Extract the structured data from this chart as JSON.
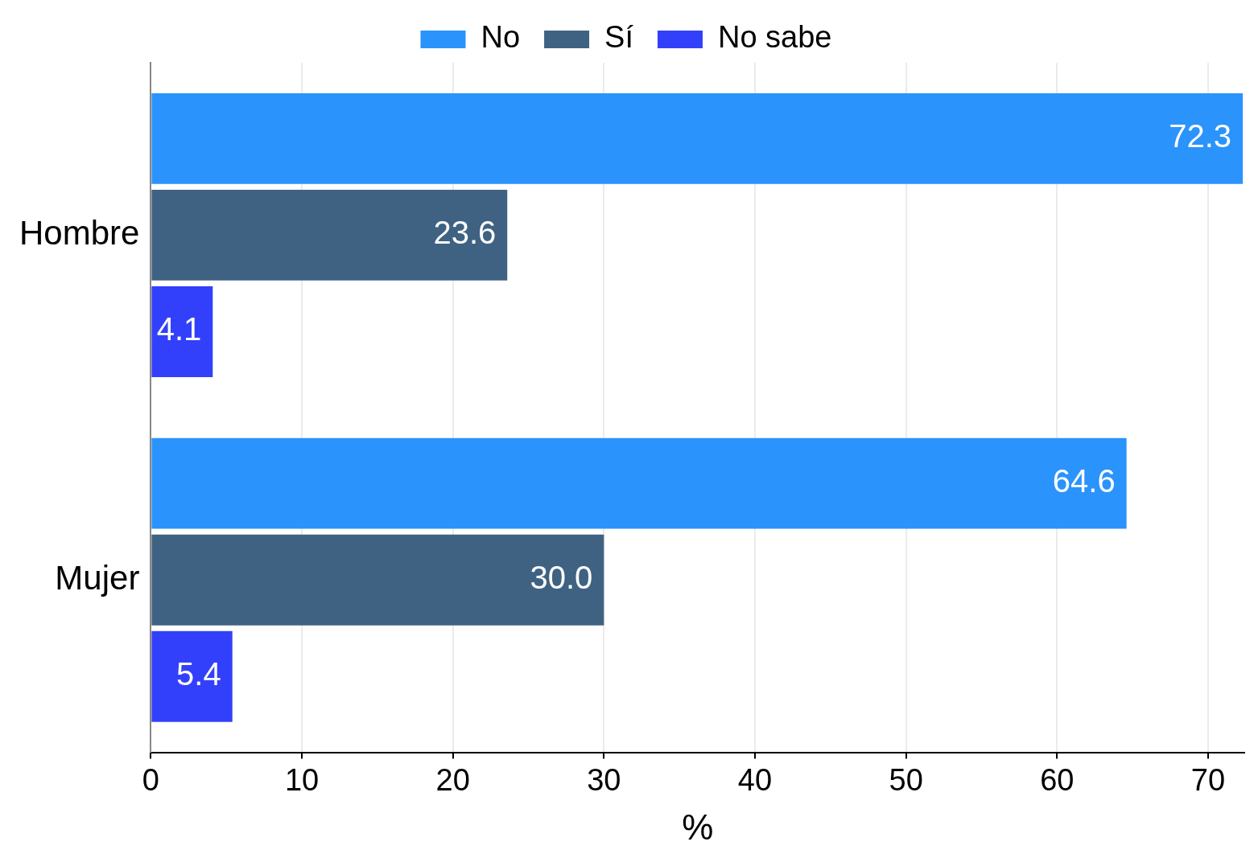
{
  "chart_data": {
    "type": "bar",
    "orientation": "horizontal",
    "xlabel": "%",
    "categories": [
      "Hombre",
      "Mujer"
    ],
    "series": [
      {
        "name": "No",
        "color": "#2a93fc",
        "values": [
          72.3,
          64.6
        ],
        "value_labels": [
          "72.3",
          "64.6"
        ]
      },
      {
        "name": "Sí",
        "color": "#3f6282",
        "values": [
          23.6,
          30.0
        ],
        "value_labels": [
          "23.6",
          "30.0"
        ]
      },
      {
        "name": "No sabe",
        "color": "#3340fb",
        "values": [
          4.1,
          5.4
        ],
        "value_labels": [
          "4.1",
          "5.4"
        ]
      }
    ],
    "xlim": [
      0,
      72.4
    ],
    "xticks": [
      0,
      10,
      20,
      30,
      40,
      50,
      60,
      70
    ],
    "grid": "x",
    "legend": "top"
  }
}
